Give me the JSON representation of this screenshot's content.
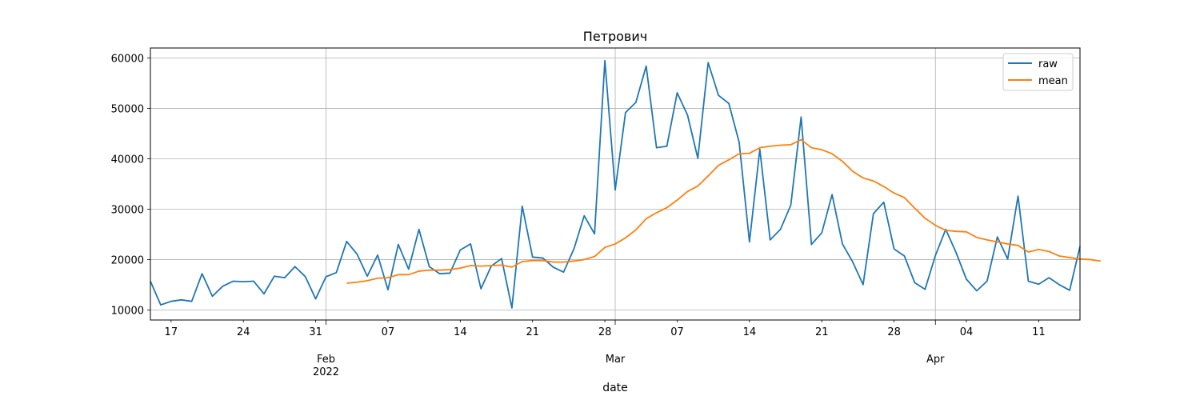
{
  "chart_data": {
    "type": "line",
    "title": "Петрович",
    "xlabel": "date",
    "ylabel": "",
    "x_range": [
      "2022-01-15",
      "2022-04-15"
    ],
    "ylim": [
      8000,
      62000
    ],
    "grid": true,
    "legend_placement": "top-right",
    "y_ticks": [
      10000,
      20000,
      30000,
      40000,
      50000,
      60000
    ],
    "y_tick_labels": [
      "10000",
      "20000",
      "30000",
      "40000",
      "50000",
      "60000"
    ],
    "x_minor_ticks": [
      {
        "date": "2022-01-17",
        "label": "17"
      },
      {
        "date": "2022-01-24",
        "label": "24"
      },
      {
        "date": "2022-01-31",
        "label": "31"
      },
      {
        "date": "2022-02-07",
        "label": "07"
      },
      {
        "date": "2022-02-14",
        "label": "14"
      },
      {
        "date": "2022-02-21",
        "label": "21"
      },
      {
        "date": "2022-02-28",
        "label": "28"
      },
      {
        "date": "2022-03-07",
        "label": "07"
      },
      {
        "date": "2022-03-14",
        "label": "14"
      },
      {
        "date": "2022-03-21",
        "label": "21"
      },
      {
        "date": "2022-03-28",
        "label": "28"
      },
      {
        "date": "2022-04-04",
        "label": "04"
      },
      {
        "date": "2022-04-11",
        "label": "11"
      }
    ],
    "x_major_ticks": [
      {
        "date": "2022-02-01",
        "label": "Feb",
        "sublabel": "2022"
      },
      {
        "date": "2022-03-01",
        "label": "Mar",
        "sublabel": ""
      },
      {
        "date": "2022-04-01",
        "label": "Apr",
        "sublabel": ""
      }
    ],
    "series": [
      {
        "name": "raw",
        "color": "#1f77b4",
        "start_date": "2022-01-15",
        "values": [
          15700,
          11000,
          11700,
          12000,
          11700,
          17200,
          12700,
          14700,
          15700,
          15600,
          15700,
          13200,
          16700,
          16400,
          18600,
          16600,
          12200,
          16600,
          17400,
          23600,
          21100,
          16700,
          20900,
          14000,
          23000,
          18100,
          26000,
          18600,
          17200,
          17300,
          21900,
          23100,
          14200,
          18700,
          20200,
          10400,
          30600,
          20500,
          20300,
          18500,
          17500,
          22100,
          28700,
          25100,
          59500,
          33800,
          49200,
          51200,
          58400,
          42200,
          42500,
          53100,
          48700,
          40100,
          59100,
          52600,
          51000,
          43300,
          23500,
          41900,
          23900,
          26000,
          30800,
          48300,
          23000,
          25300,
          32900,
          23100,
          19500,
          15000,
          29100,
          31400,
          22100,
          20700,
          15400,
          14100,
          20800,
          26000,
          21400,
          16100,
          13800,
          15700,
          24500,
          20100,
          32600,
          15700,
          15100,
          16400,
          15000,
          13900,
          22600
        ]
      },
      {
        "name": "mean",
        "color": "#ff7f0e",
        "start_date": "2022-02-03",
        "values": [
          15300,
          15500,
          15800,
          16300,
          16400,
          17000,
          17000,
          17700,
          17900,
          17900,
          18000,
          18300,
          18800,
          18700,
          18800,
          18900,
          18500,
          19600,
          19800,
          19800,
          19500,
          19500,
          19700,
          20000,
          20600,
          22400,
          23100,
          24300,
          25900,
          28100,
          29300,
          30300,
          31800,
          33500,
          34600,
          36600,
          38700,
          39800,
          41000,
          41100,
          42200,
          42500,
          42700,
          42800,
          43800,
          42200,
          41800,
          41000,
          39500,
          37500,
          36200,
          35600,
          34500,
          33200,
          32300,
          30200,
          28200,
          26800,
          25800,
          25600,
          25500,
          24400,
          23900,
          23500,
          23100,
          22800,
          21500,
          22000,
          21600,
          20700,
          20400,
          20100,
          20000,
          19700
        ]
      }
    ]
  }
}
